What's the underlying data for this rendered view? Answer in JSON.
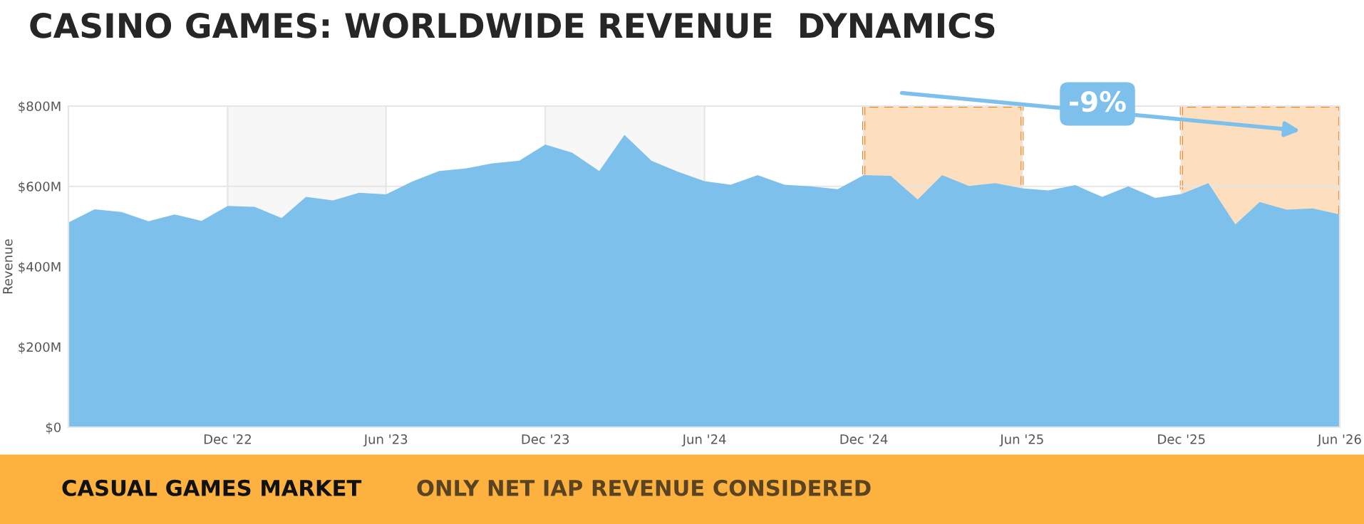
{
  "chart_data": {
    "type": "area",
    "title": "CASINO GAMES: WORLDWIDE REVENUE  DYNAMICS",
    "ylabel": "Revenue",
    "x": [
      "2022-06",
      "2022-07",
      "2022-08",
      "2022-09",
      "2022-10",
      "2022-11",
      "2022-12",
      "2023-01",
      "2023-02",
      "2023-03",
      "2023-04",
      "2023-05",
      "2023-06",
      "2023-07",
      "2023-08",
      "2023-09",
      "2023-10",
      "2023-11",
      "2023-12",
      "2024-01",
      "2024-02",
      "2024-03",
      "2024-04",
      "2024-05",
      "2024-06",
      "2024-07",
      "2024-08",
      "2024-09",
      "2024-10",
      "2024-11",
      "2024-12",
      "2025-01",
      "2025-02",
      "2025-03",
      "2025-04",
      "2025-05",
      "2025-06",
      "2025-07",
      "2025-08",
      "2025-09",
      "2025-10",
      "2025-11",
      "2025-12",
      "2026-01",
      "2026-02",
      "2026-03",
      "2026-04",
      "2026-05",
      "2026-06"
    ],
    "series": [
      {
        "color": "#7dc0ec",
        "values": [
          510,
          543,
          536,
          513,
          530,
          514,
          551,
          549,
          521,
          574,
          565,
          584,
          580,
          612,
          638,
          645,
          657,
          664,
          704,
          684,
          638,
          728,
          664,
          637,
          613,
          604,
          628,
          604,
          600,
          593,
          628,
          626,
          567,
          628,
          601,
          608,
          595,
          590,
          603,
          574,
          600,
          571,
          581,
          608,
          505,
          561,
          542,
          545,
          530
        ]
      }
    ],
    "xlim": [
      "2022-06",
      "2026-06"
    ],
    "xticks": [
      {
        "value": "2022-12",
        "label": "Dec '22"
      },
      {
        "value": "2023-06",
        "label": "Jun '23"
      },
      {
        "value": "2023-12",
        "label": "Dec '23"
      },
      {
        "value": "2024-06",
        "label": "Jun '24"
      },
      {
        "value": "2024-12",
        "label": "Dec '24"
      },
      {
        "value": "2025-06",
        "label": "Jun '25"
      },
      {
        "value": "2025-12",
        "label": "Dec '25"
      },
      {
        "value": "2026-06",
        "label": "Jun '26"
      }
    ],
    "ylim": [
      0,
      800
    ],
    "yticks": [
      {
        "value": 0,
        "label": "$0"
      },
      {
        "value": 200,
        "label": "$200M"
      },
      {
        "value": 400,
        "label": "$400M"
      },
      {
        "value": 600,
        "label": "$600M"
      },
      {
        "value": 800,
        "label": "$800M"
      }
    ],
    "grid": true,
    "bands": [
      {
        "axis": "x",
        "from": "2022-12",
        "to": "2023-06",
        "color": "#f7f7f7"
      },
      {
        "axis": "x",
        "from": "2023-12",
        "to": "2024-06",
        "color": "#f7f7f7"
      },
      {
        "axis": "x",
        "from": "2024-12",
        "to": "2025-06",
        "color": "#f9b060"
      },
      {
        "axis": "x",
        "from": "2025-12",
        "to": "2026-06",
        "color": "#f9b060"
      }
    ],
    "annotations": [
      "-9%",
      "CASUAL GAMES MARKET",
      "ONLY NET IAP REVENUE CONSIDERED"
    ]
  }
}
